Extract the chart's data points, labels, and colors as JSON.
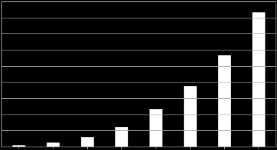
{
  "values": [
    1,
    3,
    7,
    15,
    28,
    45,
    68,
    100
  ],
  "bar_color": "#ffffff",
  "background_color": "#000000",
  "grid_color": "#aaaaaa",
  "spine_color": "#888888",
  "tick_color": "#ffffff",
  "bar_width": 0.35,
  "ylim": [
    0,
    108
  ],
  "yticks": [
    0,
    12,
    24,
    36,
    48,
    60,
    72,
    84,
    96,
    108
  ],
  "figsize": [
    4.04,
    2.2
  ],
  "dpi": 100
}
